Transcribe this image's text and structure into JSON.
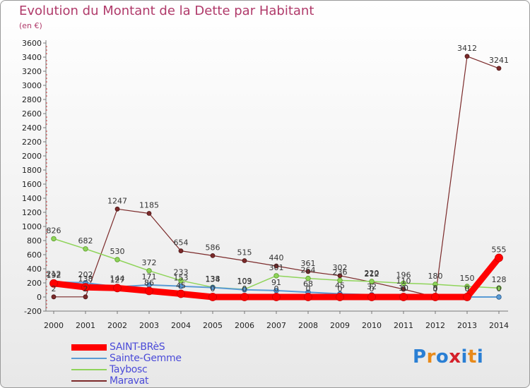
{
  "title": "Evolution du Montant de la Dette par Habitant",
  "subtitle": "(en €)",
  "logo": {
    "letters": [
      "P",
      "r",
      "o",
      "x",
      "i",
      "t",
      "i"
    ],
    "colors": [
      "#2a7fd4",
      "#e88a1a",
      "#2a7fd4",
      "#d4202a",
      "#2a7fd4",
      "#e88a1a",
      "#2a7fd4"
    ]
  },
  "chart_data": {
    "type": "line",
    "x": [
      "2000",
      "2001",
      "2002",
      "2003",
      "2004",
      "2005",
      "2006",
      "2007",
      "2008",
      "2009",
      "2010",
      "2011",
      "2012",
      "2013",
      "2014"
    ],
    "ylim": [
      -200,
      3600
    ],
    "yticks": [
      "-200",
      "0",
      "200",
      "400",
      "600",
      "800",
      "1000",
      "1200",
      "1400",
      "1600",
      "1800",
      "2000",
      "2200",
      "2400",
      "2600",
      "2800",
      "3000",
      "3200",
      "3400",
      "3600"
    ],
    "grid": false,
    "legend_position": "bottom-left",
    "series": [
      {
        "name": "SAINT-BRèS",
        "color": "#ff0000",
        "values": [
          192,
          138,
          127,
          86,
          45,
          0,
          0,
          0,
          0,
          0,
          0,
          0,
          0,
          0,
          555
        ],
        "labels": [
          "192",
          "138",
          "127",
          "86",
          "45",
          "0",
          "0",
          "0",
          "0",
          "0",
          "0",
          "0",
          "0",
          "0",
          "555"
        ]
      },
      {
        "name": "Sainte-Gemme",
        "color": "#5a9bd5",
        "values": [
          212,
          202,
          144,
          171,
          153,
          134,
          103,
          91,
          68,
          45,
          32,
          10,
          5,
          0,
          0
        ],
        "labels": [
          "212",
          "202",
          "144",
          "171",
          "153",
          "134",
          "103",
          "91",
          "68",
          "45",
          "32",
          "10",
          "5",
          "0",
          "0"
        ]
      },
      {
        "name": "Taybosc",
        "color": "#8fd45a",
        "values": [
          826,
          682,
          530,
          372,
          233,
          138,
          109,
          301,
          264,
          236,
          220,
          196,
          180,
          150,
          128
        ],
        "labels": [
          "826",
          "682",
          "530",
          "372",
          "233",
          "138",
          "109",
          "301",
          "264",
          "236",
          "220",
          "196",
          "180",
          "150",
          "128"
        ]
      },
      {
        "name": "Maravat",
        "color": "#7b2a2a",
        "values": [
          2,
          2,
          1247,
          1185,
          654,
          586,
          515,
          440,
          361,
          302,
          212,
          110,
          0,
          3412,
          3241
        ],
        "labels": [
          "2",
          "2",
          "1247",
          "1185",
          "654",
          "586",
          "515",
          "440",
          "361",
          "302",
          "212",
          "110",
          "0",
          "3412",
          "3241"
        ]
      }
    ]
  }
}
